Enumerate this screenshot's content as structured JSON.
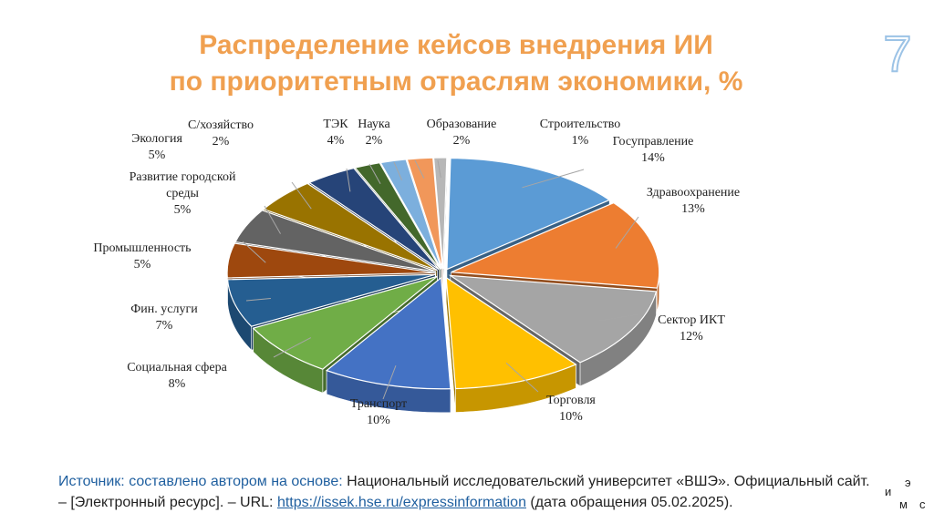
{
  "slide": {
    "number": "7",
    "title_line1": "Распределение кейсов внедрения ИИ",
    "title_line2": "по приоритетным отраслям экономики, %"
  },
  "chart_data": {
    "type": "pie",
    "title": "Распределение кейсов внедрения ИИ по приоритетным отраслям экономики, %",
    "slices": [
      {
        "name": "Госуправление",
        "value": 14,
        "label": "14%",
        "color": "#5b9bd5"
      },
      {
        "name": "Здравоохранение",
        "value": 13,
        "label": "13%",
        "color": "#ed7d31"
      },
      {
        "name": "Сектор ИКТ",
        "value": 12,
        "label": "12%",
        "color": "#a5a5a5"
      },
      {
        "name": "Торговля",
        "value": 10,
        "label": "10%",
        "color": "#ffc000"
      },
      {
        "name": "Транспорт",
        "value": 10,
        "label": "10%",
        "color": "#4472c4"
      },
      {
        "name": "Социальная сфера",
        "value": 8,
        "label": "8%",
        "color": "#70ad47"
      },
      {
        "name": "Фин. услуги",
        "value": 7,
        "label": "7%",
        "color": "#255e91"
      },
      {
        "name": "Промышленность",
        "value": 5,
        "label": "5%",
        "color": "#9e480e"
      },
      {
        "name": "Развитие городской среды",
        "label_lines": [
          "Развитие городской",
          "среды"
        ],
        "value": 5,
        "label": "5%",
        "color": "#636363"
      },
      {
        "name": "Экология",
        "value": 5,
        "label": "5%",
        "color": "#997300"
      },
      {
        "name": "ТЭК",
        "value": 4,
        "label": "4%",
        "color": "#264478"
      },
      {
        "name": "С/хозяйство",
        "value": 2,
        "label": "2%",
        "color": "#43682b"
      },
      {
        "name": "Наука",
        "value": 2,
        "label": "2%",
        "color": "#7cafdd"
      },
      {
        "name": "Образование",
        "value": 2,
        "label": "2%",
        "color": "#f1975a"
      },
      {
        "name": "Строительство",
        "value": 1,
        "label": "1%",
        "color": "#b7b7b7"
      }
    ]
  },
  "source": {
    "prefix": "Источник: составлено автором на основе:",
    "text1": " Национальный исследовательский университет «ВШЭ». Официальный сайт. – [Электронный ресурс]. – URL: ",
    "link": "https://issek.hse.ru/expressinformation",
    "text2": " (дата обращения 05.02.2025)."
  },
  "logo": {
    "l1": "и",
    "l2": "э",
    "l3": "м",
    "l4": "с"
  }
}
